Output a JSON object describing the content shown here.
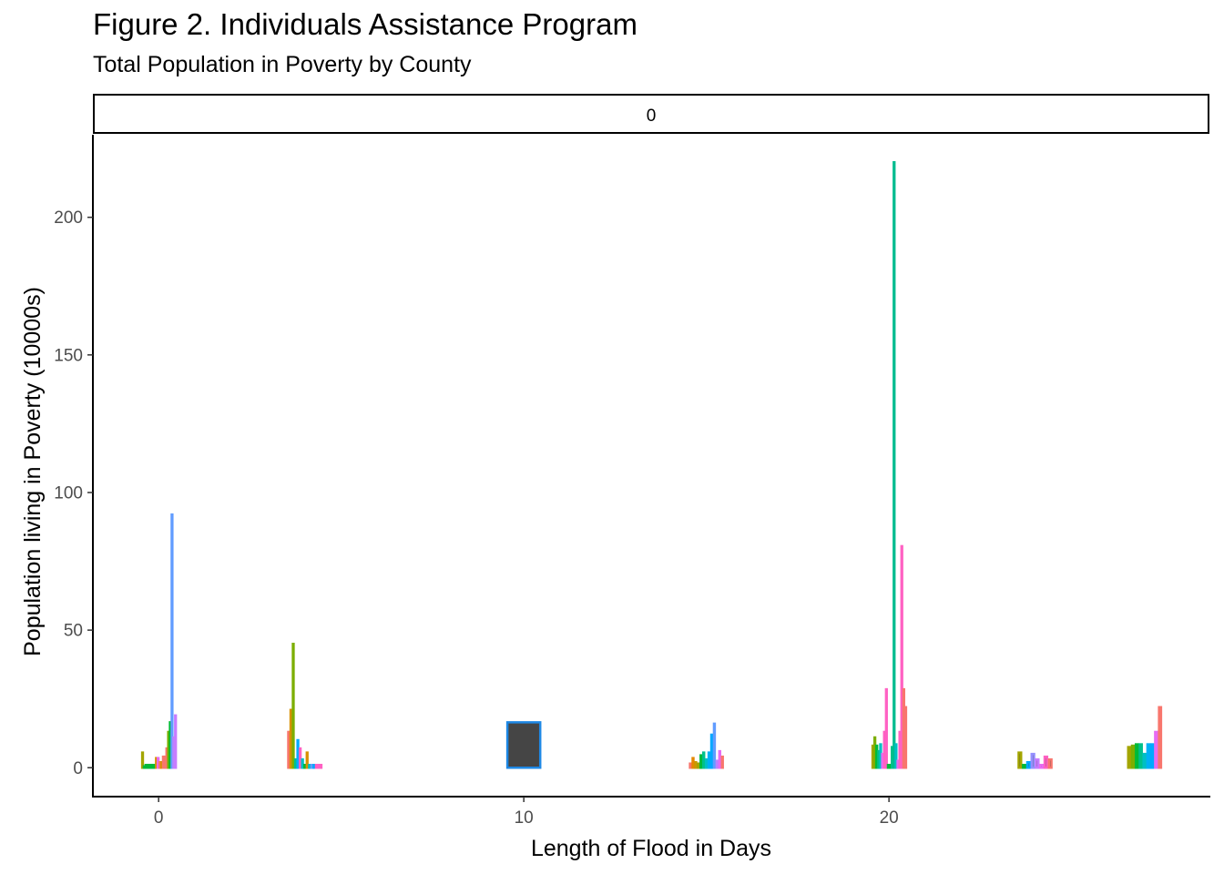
{
  "title": "Figure 2. Individuals Assistance Program",
  "subtitle": "Total Population in Poverty by County",
  "facet_label": "0",
  "chart_data": {
    "type": "bar",
    "title": "Figure 2. Individuals Assistance Program",
    "subtitle": "Total Population in Poverty by County",
    "xlabel": "Length of Flood in Days",
    "ylabel": "Population living in Poverty (10000s)",
    "facet": "0",
    "xlim": [
      -1.8,
      28.8
    ],
    "ylim": [
      -10.5,
      230
    ],
    "x_ticks": [
      0,
      10,
      20
    ],
    "y_ticks": [
      0,
      50,
      100,
      150,
      200
    ],
    "grid": false,
    "legend": "none",
    "groups": [
      {
        "x": 0,
        "values": [
          5.5,
          0.5,
          1,
          1,
          1,
          1,
          1,
          1,
          3.5,
          3.5,
          2,
          2,
          4,
          4,
          7,
          13,
          16.5,
          92,
          11,
          19
        ],
        "colors": [
          "#A3A500",
          "#00BA38",
          "#00BA38",
          "#00BA38",
          "#00BA38",
          "#00BA38",
          "#00BA38",
          "#00BA38",
          "#D89000",
          "#E76BF3",
          "#F8766D",
          "#D89000",
          "#F8766D",
          "#F8766D",
          "#F8766D",
          "#7CAE00",
          "#00BA38",
          "#619CFF",
          "#B983FF",
          "#C77CFF"
        ]
      },
      {
        "x": 4,
        "values": [
          13,
          21,
          45,
          3,
          10,
          7,
          3,
          1,
          5.5,
          1,
          1,
          1,
          1,
          1,
          1
        ],
        "colors": [
          "#F8766D",
          "#D89000",
          "#7CAE00",
          "#00C08B",
          "#00A9FF",
          "#FF61C3",
          "#00BFC4",
          "#00BA38",
          "#D89000",
          "#00BFC4",
          "#619CFF",
          "#00A9FF",
          "#FF61C3",
          "#FF61C3",
          "#FF61C3"
        ]
      },
      {
        "x": 10,
        "values": [
          16.5
        ],
        "colors": [
          "#1E88E5"
        ]
      },
      {
        "x": 15,
        "values": [
          1.5,
          3.5,
          2,
          1.5,
          4.5,
          5.5,
          3,
          5.5,
          12,
          16,
          2.5,
          6,
          4
        ],
        "colors": [
          "#F8766D",
          "#E58700",
          "#C99800",
          "#A3A500",
          "#00BA38",
          "#00C08B",
          "#00BFC4",
          "#00B0F6",
          "#00A9FF",
          "#619CFF",
          "#B983FF",
          "#E76BF3",
          "#F8766D"
        ]
      },
      {
        "x": 20,
        "values": [
          8,
          11,
          8,
          6,
          8.5,
          5,
          13,
          28.5,
          1,
          1,
          7.5,
          220,
          8.5,
          2.5,
          13,
          80.5,
          28.5,
          22
        ],
        "colors": [
          "#A3A500",
          "#7CAE00",
          "#00BA38",
          "#00C08B",
          "#00BFC4",
          "#E76BF3",
          "#FF61C3",
          "#FF61C3",
          "#00BA38",
          "#00BA38",
          "#00C08B",
          "#00BC8F",
          "#00BFC4",
          "#E76BF3",
          "#FF61C3",
          "#FF61C3",
          "#F8766D",
          "#F8766D"
        ]
      },
      {
        "x": 24,
        "values": [
          5.5,
          1,
          2,
          5,
          3,
          1,
          4,
          3
        ],
        "colors": [
          "#A3A500",
          "#00BA38",
          "#00A9FF",
          "#9590FF",
          "#C77CFF",
          "#E76BF3",
          "#FF61C3",
          "#F8766D"
        ]
      },
      {
        "x": 27,
        "values": [
          7.5,
          8,
          8.5,
          8.5,
          5,
          8.5,
          8.5,
          13,
          22
        ],
        "colors": [
          "#A3A500",
          "#7CAE00",
          "#00BA38",
          "#00C08B",
          "#00BFC4",
          "#00B0F6",
          "#00A9FF",
          "#E76BF3",
          "#F8766D"
        ]
      }
    ]
  }
}
